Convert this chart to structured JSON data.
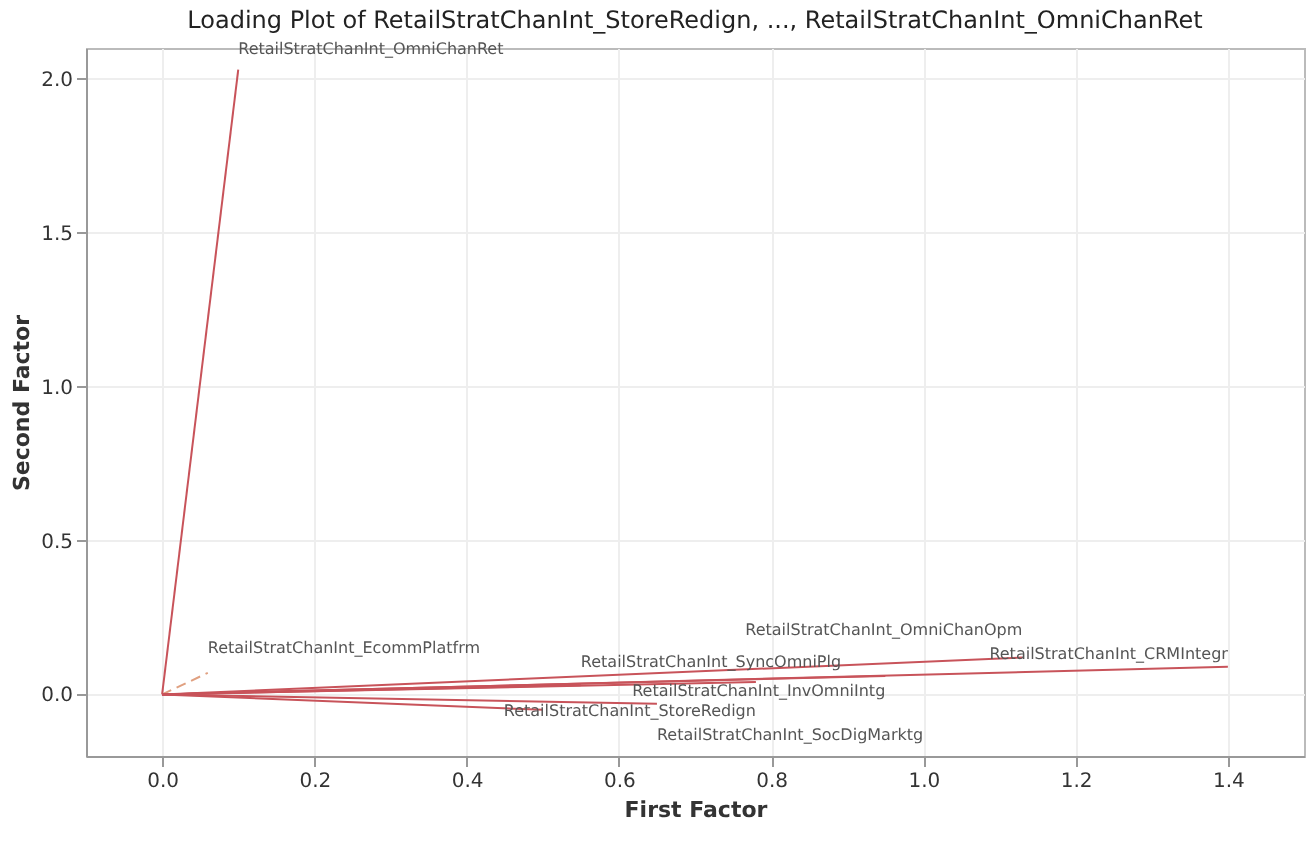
{
  "chart_data": {
    "type": "line",
    "title": "Loading Plot of RetailStratChanInt_StoreRedign, ..., RetailStratChanInt_OmniChanRet",
    "xlabel": "First Factor",
    "ylabel": "Second Factor",
    "xlim": [
      -0.1,
      1.5
    ],
    "xticks": [
      {
        "value": 0,
        "label": "0.0"
      },
      0.2,
      0.4,
      0.6,
      0.8,
      {
        "value": 1,
        "label": "1.0"
      },
      1.2,
      1.4
    ],
    "ylim": [
      -0.2,
      2.1
    ],
    "yticks": [
      {
        "value": 0,
        "label": "0.0"
      },
      0.5,
      {
        "value": 1,
        "label": "1.0"
      },
      1.5,
      {
        "value": 2,
        "label": "2.0"
      }
    ],
    "grid": true,
    "marker": "none",
    "line_style": "solid",
    "series": [
      {
        "color": "#c8535a",
        "x": [
          0,
          0.1
        ],
        "values": [
          0,
          2.03
        ]
      },
      {
        "color": "#e0a080",
        "x": [
          0,
          0.06
        ],
        "values": [
          0,
          0.07
        ],
        "line_style": "dashed"
      },
      {
        "color": "#c8535a",
        "x": [
          0,
          0.55
        ],
        "values": [
          0,
          0.03
        ]
      },
      {
        "color": "#c8535a",
        "x": [
          0,
          1.13
        ],
        "values": [
          0,
          0.12
        ]
      },
      {
        "color": "#c8535a",
        "x": [
          0,
          1.4
        ],
        "values": [
          0,
          0.09
        ]
      },
      {
        "color": "#c8535a",
        "x": [
          0,
          0.95
        ],
        "values": [
          0,
          0.06
        ]
      },
      {
        "color": "#c8535a",
        "x": [
          0,
          0.78
        ],
        "values": [
          0,
          0.04
        ]
      },
      {
        "color": "#c8535a",
        "x": [
          0,
          0.65
        ],
        "values": [
          0,
          -0.03
        ]
      },
      {
        "color": "#c8535a",
        "x": [
          0,
          0.5
        ],
        "values": [
          0,
          -0.05
        ]
      }
    ],
    "annotations": [
      {
        "text": "RetailStratChanInt_OmniChanRet",
        "x": 0.1,
        "y": 2.03
      },
      {
        "text": "RetailStratChanInt_EcommPlatfrm",
        "x": 0.06,
        "y": 0.07
      },
      {
        "text": "RetailStratChanInt_SyncOmniPlg",
        "x": 0.55,
        "y": 0.03
      },
      {
        "text": "RetailStratChanInt_OmniChanOpm",
        "x": 1.13,
        "y": 0.12
      },
      {
        "text": "RetailStratChanInt_CRMIntegr",
        "x": 1.4,
        "y": 0.09
      },
      {
        "text": "RetailStratChanInt_InvOmniIntg",
        "x": 0.95,
        "y": 0.06
      },
      {
        "text": "RetailStratChanInt_StoreRedign",
        "x": 0.78,
        "y": 0.04
      },
      {
        "text": "RetailStratChanInt_SocDigMarktg",
        "x": 0.65,
        "y": -0.03
      }
    ]
  }
}
